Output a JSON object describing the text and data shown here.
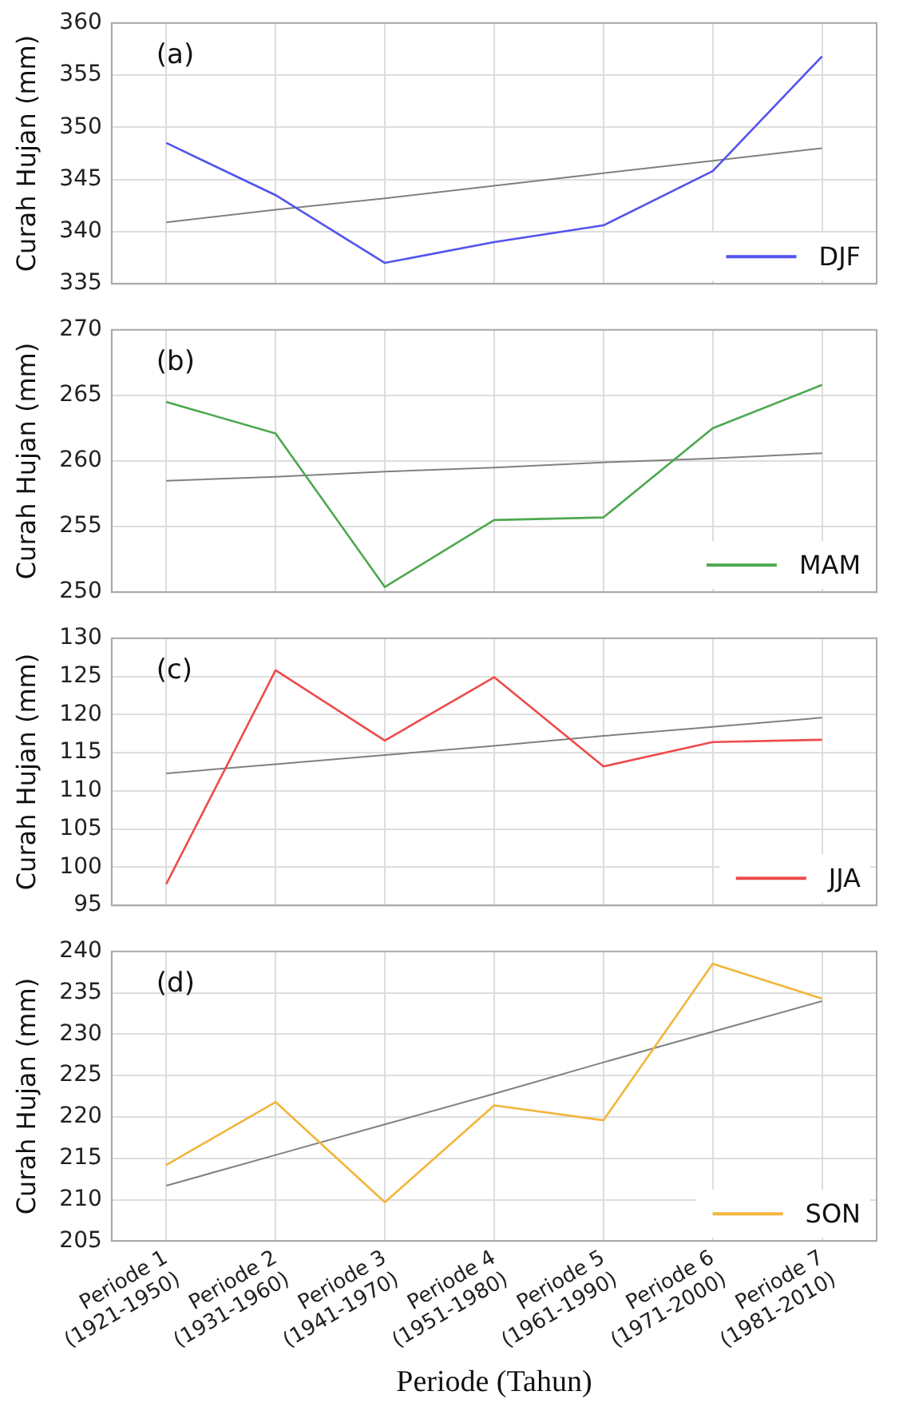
{
  "chart_data": [
    {
      "type": "line",
      "ylabel": "Curah Hujan (mm)",
      "annotations": [
        "(a)"
      ],
      "categories": [
        null,
        null,
        null,
        null,
        null,
        null,
        null
      ],
      "tick_labels": "y",
      "grid": true,
      "legend": "bottom right",
      "ylim": [
        335,
        360
      ],
      "yticks": [
        335,
        340,
        345,
        350,
        355,
        360
      ],
      "series": [
        {
          "name": "DJF",
          "color": "#5353ee",
          "values": [
            348.5,
            343.5,
            337.0,
            339.0,
            340.6,
            345.8,
            356.8
          ]
        },
        {
          "color": "#808080",
          "values": [
            340.9,
            342.1,
            343.2,
            344.4,
            345.6,
            346.8,
            348.0
          ]
        }
      ]
    },
    {
      "type": "line",
      "ylabel": "Curah Hujan (mm)",
      "annotations": [
        "(b)"
      ],
      "categories": [
        null,
        null,
        null,
        null,
        null,
        null,
        null
      ],
      "tick_labels": "y",
      "grid": true,
      "legend": "bottom right",
      "ylim": [
        250,
        270
      ],
      "yticks": [
        250,
        255,
        260,
        265,
        270
      ],
      "series": [
        {
          "name": "MAM",
          "color": "#4ea84e",
          "values": [
            264.5,
            262.1,
            250.4,
            255.5,
            255.7,
            262.5,
            265.8
          ]
        },
        {
          "color": "#808080",
          "values": [
            258.5,
            258.8,
            259.2,
            259.5,
            259.9,
            260.2,
            260.6
          ]
        }
      ]
    },
    {
      "type": "line",
      "ylabel": "Curah Hujan (mm)",
      "annotations": [
        "(c)"
      ],
      "categories": [
        null,
        null,
        null,
        null,
        null,
        null,
        null
      ],
      "tick_labels": "y",
      "grid": true,
      "legend": "bottom right",
      "ylim": [
        95,
        130
      ],
      "yticks": [
        95,
        100,
        105,
        110,
        115,
        120,
        125,
        130
      ],
      "series": [
        {
          "name": "JJA",
          "color": "#ee4b4b",
          "values": [
            97.8,
            125.8,
            116.6,
            124.9,
            113.2,
            116.4,
            116.7
          ]
        },
        {
          "color": "#808080",
          "values": [
            112.3,
            113.5,
            114.7,
            115.9,
            117.2,
            118.4,
            119.6
          ]
        }
      ]
    },
    {
      "type": "line",
      "ylabel": "Curah Hujan (mm)",
      "xlabel": "Periode (Tahun)",
      "annotations": [
        "(d)"
      ],
      "categories": [
        "Periode 1\n(1921-1950)",
        "Periode 2\n(1931-1960)",
        "Periode 3\n(1941-1970)",
        "Periode 4\n(1951-1980)",
        "Periode 5\n(1961-1990)",
        "Periode 6\n(1971-2000)",
        "Periode 7\n(1981-2010)"
      ],
      "grid": true,
      "legend": "bottom right",
      "ylim": [
        205,
        240
      ],
      "yticks": [
        205,
        210,
        215,
        220,
        225,
        230,
        235,
        240
      ],
      "series": [
        {
          "name": "SON",
          "color": "#f2b53c",
          "values": [
            214.2,
            221.8,
            209.7,
            221.4,
            219.6,
            238.5,
            234.3
          ]
        },
        {
          "color": "#808080",
          "values": [
            211.7,
            215.4,
            219.1,
            222.8,
            226.6,
            230.3,
            234.0
          ]
        }
      ]
    }
  ]
}
